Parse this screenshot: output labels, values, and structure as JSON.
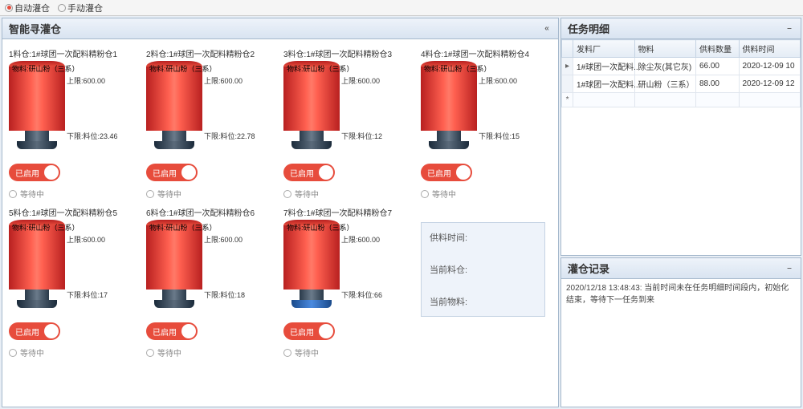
{
  "toolbar": {
    "radio_auto": "自动灌仓",
    "radio_manual": "手动灌仓",
    "selected": "auto"
  },
  "left": {
    "title": "智能寻灌仓",
    "toggle_on_label": "已启用",
    "wait_label": "等待中",
    "silos": [
      {
        "name": "1料仓:1#球团一次配料精粉仓1",
        "material": "物料:研山粉（三系）",
        "upper": "上限:600.00",
        "lower": "下限:料位:23.46",
        "foot": "dark"
      },
      {
        "name": "2料仓:1#球团一次配料精粉仓2",
        "material": "物料:研山粉（三系）",
        "upper": "上限:600.00",
        "lower": "下限:料位:22.78",
        "foot": "dark"
      },
      {
        "name": "3料仓:1#球团一次配料精粉仓3",
        "material": "物料:研山粉（三系）",
        "upper": "上限:600.00",
        "lower": "下限:料位:12",
        "foot": "dark"
      },
      {
        "name": "4料仓:1#球团一次配料精粉仓4",
        "material": "物料:研山粉（三系）",
        "upper": "上限:600.00",
        "lower": "下限:料位:15",
        "foot": "dark"
      },
      {
        "name": "5料仓:1#球团一次配料精粉仓5",
        "material": "物料:研山粉（三系）",
        "upper": "上限:600.00",
        "lower": "下限:料位:17",
        "foot": "dark"
      },
      {
        "name": "6料仓:1#球团一次配料精粉仓6",
        "material": "物料:研山粉（三系）",
        "upper": "上限:600.00",
        "lower": "下限:料位:18",
        "foot": "dark"
      },
      {
        "name": "7料仓:1#球团一次配料精粉仓7",
        "material": "物料:研山粉（三系）",
        "upper": "上限:600.00",
        "lower": "下限:料位:66",
        "foot": "blue"
      }
    ],
    "infobox": {
      "feed_time": "供料时间:",
      "current_silo": "当前料仓:",
      "current_material": "当前物料:"
    }
  },
  "tasks": {
    "title": "任务明细",
    "cols": {
      "c1": "发料厂",
      "c2": "物料",
      "c3": "供料数量",
      "c4": "供料时间"
    },
    "rows": [
      {
        "c1": "1#球团一次配料...",
        "c2": "除尘灰(其它灰)",
        "c3": "66.00",
        "c4": "2020-12-09 10"
      },
      {
        "c1": "1#球团一次配料...",
        "c2": "研山粉（三系）",
        "c3": "88.00",
        "c4": "2020-12-09 12"
      }
    ]
  },
  "log": {
    "title": "灌仓记录",
    "entry": "2020/12/18 13:48:43: 当前时间未在任务明细时间段内，初始化结束，等待下一任务到来"
  },
  "colors": {
    "accent_red": "#e74c3c",
    "panel_border": "#a5b8cc",
    "header_grad_top": "#eef3fa",
    "header_grad_bot": "#d9e4f1"
  }
}
